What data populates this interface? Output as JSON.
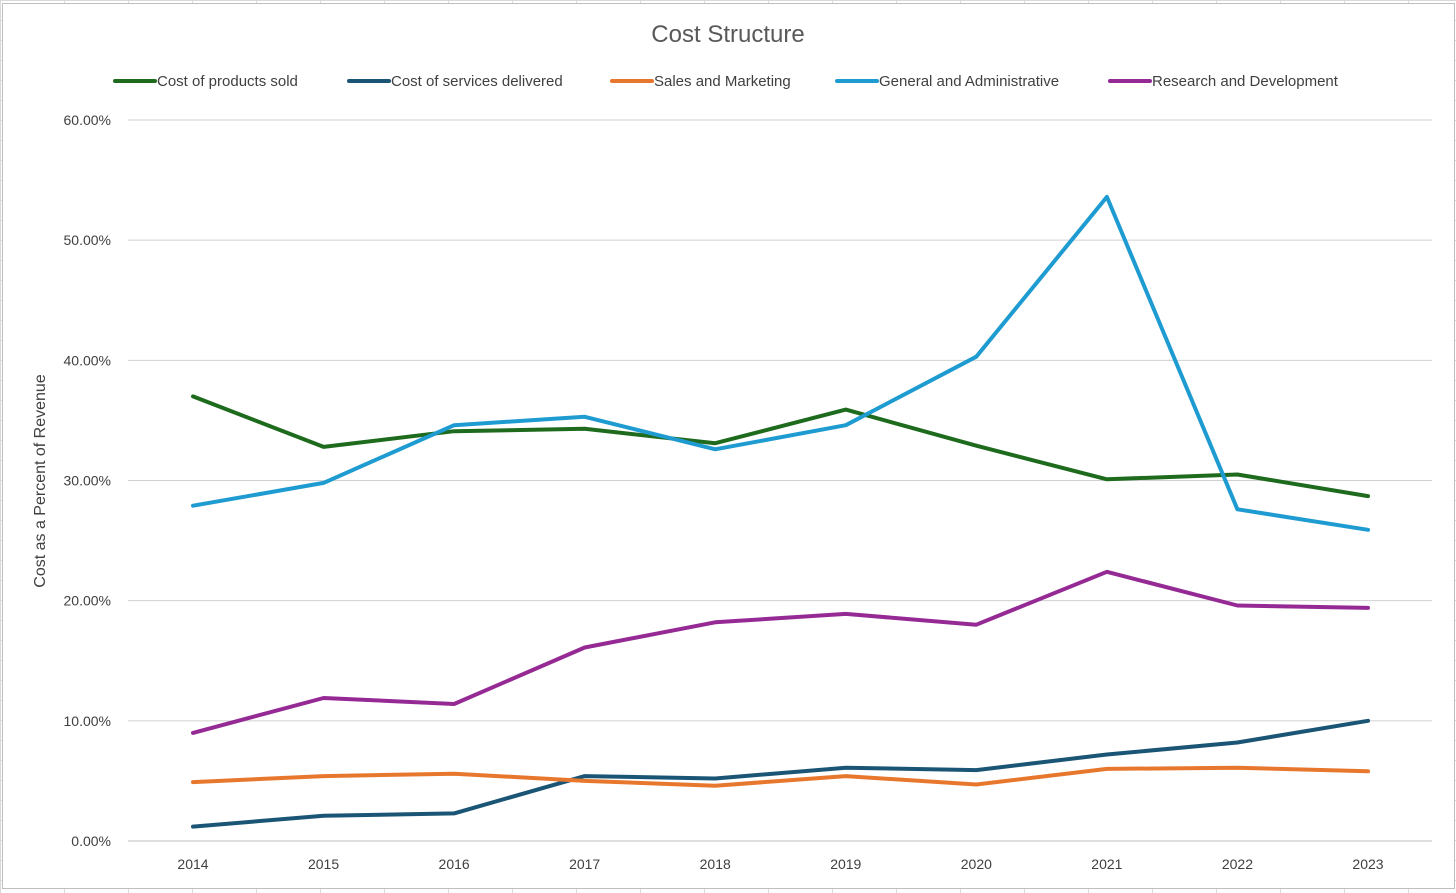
{
  "chart_data": {
    "type": "line",
    "title": "Cost Structure",
    "xlabel": "",
    "ylabel": "Cost as a Percent of Revenue",
    "ylim": [
      0,
      60
    ],
    "y_ticks": [
      "0.00%",
      "10.00%",
      "20.00%",
      "30.00%",
      "40.00%",
      "50.00%",
      "60.00%"
    ],
    "y_tick_values": [
      0,
      10,
      20,
      30,
      40,
      50,
      60
    ],
    "categories": [
      "2014",
      "2015",
      "2016",
      "2017",
      "2018",
      "2019",
      "2020",
      "2021",
      "2022",
      "2023"
    ],
    "grid": true,
    "legend_position": "top",
    "series": [
      {
        "name": "Cost of products sold",
        "color": "#1e6b1e",
        "values": [
          37.0,
          32.8,
          34.1,
          34.3,
          33.1,
          35.9,
          32.9,
          30.1,
          30.5,
          28.7
        ]
      },
      {
        "name": "Cost of services delivered",
        "color": "#1b5575",
        "values": [
          1.2,
          2.1,
          2.3,
          5.4,
          5.2,
          6.1,
          5.9,
          7.2,
          8.2,
          10.0
        ]
      },
      {
        "name": "Sales and Marketing",
        "color": "#e8772e",
        "values": [
          4.9,
          5.4,
          5.6,
          5.0,
          4.6,
          5.4,
          4.7,
          6.0,
          6.1,
          5.8
        ]
      },
      {
        "name": "General and Administrative",
        "color": "#1e9bd0",
        "values": [
          27.9,
          29.8,
          34.6,
          35.3,
          32.6,
          34.6,
          40.3,
          53.6,
          27.6,
          25.9
        ]
      },
      {
        "name": "Research and Development",
        "color": "#952a95",
        "values": [
          9.0,
          11.9,
          11.4,
          16.1,
          18.2,
          18.9,
          18.0,
          22.4,
          19.6,
          19.4
        ]
      }
    ]
  }
}
